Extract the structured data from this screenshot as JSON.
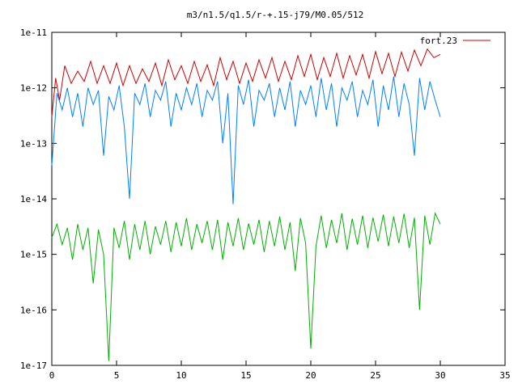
{
  "chart_data": {
    "type": "line",
    "title": "m3/n1.5/q1.5/r-+.15-j79/M0.05/512",
    "xlabel": "",
    "ylabel": "",
    "xlim": [
      0,
      35
    ],
    "ylim": [
      1e-17,
      1e-11
    ],
    "yscale": "log",
    "x_ticks": [
      0,
      5,
      10,
      15,
      20,
      25,
      30,
      35
    ],
    "x_tick_labels": [
      "0",
      "5",
      "10",
      "15",
      "20",
      "25",
      "30",
      "35"
    ],
    "y_ticks": [
      1e-11,
      1e-12,
      1e-13,
      1e-14,
      1e-15,
      1e-16,
      1e-17
    ],
    "y_tick_labels": [
      "1e-11",
      "1e-12",
      "1e-13",
      "1e-14",
      "1e-15",
      "1e-16",
      "1e-17"
    ],
    "grid": false,
    "legend_position": "top-right",
    "series": [
      {
        "name": "fort.23",
        "color": "#cc0000",
        "x": [
          0.0,
          0.3,
          0.6,
          1.0,
          1.5,
          2.0,
          2.5,
          3.0,
          3.5,
          4.0,
          4.5,
          5.0,
          5.5,
          6.0,
          6.5,
          7.0,
          7.5,
          8.0,
          8.5,
          9.0,
          9.5,
          10.0,
          10.5,
          11.0,
          11.5,
          12.0,
          12.5,
          13.0,
          13.5,
          14.0,
          14.5,
          15.0,
          15.5,
          16.0,
          16.5,
          17.0,
          17.5,
          18.0,
          18.5,
          19.0,
          19.5,
          20.0,
          20.5,
          21.0,
          21.5,
          22.0,
          22.5,
          23.0,
          23.5,
          24.0,
          24.5,
          25.0,
          25.5,
          26.0,
          26.5,
          27.0,
          27.5,
          28.0,
          28.5,
          29.0,
          29.5,
          30.0
        ],
        "y": [
          3e-13,
          1.5e-12,
          6e-13,
          2.5e-12,
          1.2e-12,
          2e-12,
          1.3e-12,
          3e-12,
          1.2e-12,
          2.5e-12,
          1.2e-12,
          2.8e-12,
          1.1e-12,
          2.5e-12,
          1.2e-12,
          2.2e-12,
          1.3e-12,
          2.8e-12,
          1.1e-12,
          3.2e-12,
          1.4e-12,
          2.5e-12,
          1.2e-12,
          3e-12,
          1.3e-12,
          2.6e-12,
          1.1e-12,
          3.5e-12,
          1.4e-12,
          3e-12,
          1.2e-12,
          2.8e-12,
          1.3e-12,
          3.2e-12,
          1.5e-12,
          3.5e-12,
          1.3e-12,
          3e-12,
          1.4e-12,
          3.8e-12,
          1.6e-12,
          4e-12,
          1.4e-12,
          3.5e-12,
          1.6e-12,
          4.2e-12,
          1.5e-12,
          3.8e-12,
          1.7e-12,
          4e-12,
          1.5e-12,
          4.5e-12,
          1.8e-12,
          4.2e-12,
          1.6e-12,
          4.4e-12,
          2e-12,
          4.8e-12,
          2.5e-12,
          5e-12,
          3.5e-12,
          4e-12
        ]
      },
      {
        "color": "#0080ff",
        "x": [
          0.0,
          0.4,
          0.8,
          1.2,
          1.6,
          2.0,
          2.4,
          2.8,
          3.2,
          3.6,
          4.0,
          4.4,
          4.8,
          5.2,
          5.6,
          6.0,
          6.4,
          6.8,
          7.2,
          7.6,
          8.0,
          8.4,
          8.8,
          9.2,
          9.6,
          10.0,
          10.4,
          10.8,
          11.2,
          11.6,
          12.0,
          12.4,
          12.8,
          13.2,
          13.6,
          14.0,
          14.4,
          14.8,
          15.2,
          15.6,
          16.0,
          16.4,
          16.8,
          17.2,
          17.6,
          18.0,
          18.4,
          18.8,
          19.2,
          19.6,
          20.0,
          20.4,
          20.8,
          21.2,
          21.6,
          22.0,
          22.4,
          22.8,
          23.2,
          23.6,
          24.0,
          24.4,
          24.8,
          25.2,
          25.6,
          26.0,
          26.4,
          26.8,
          27.2,
          27.6,
          28.0,
          28.4,
          28.8,
          29.2,
          29.6,
          30.0
        ],
        "y": [
          4e-14,
          8e-13,
          4e-13,
          1e-12,
          3e-13,
          8e-13,
          2e-13,
          1e-12,
          5e-13,
          9e-13,
          6e-14,
          7e-13,
          4e-13,
          1.1e-12,
          2e-13,
          1e-14,
          8e-13,
          5e-13,
          1.2e-12,
          3e-13,
          9e-13,
          6e-13,
          1.3e-12,
          2e-13,
          8e-13,
          4e-13,
          1e-12,
          5e-13,
          1.2e-12,
          3e-13,
          9e-13,
          6e-13,
          1.3e-12,
          1e-13,
          8e-13,
          8e-15,
          1.1e-12,
          5e-13,
          1.4e-12,
          2e-13,
          9e-13,
          6e-13,
          1.2e-12,
          3e-13,
          1e-12,
          4e-13,
          1.3e-12,
          2e-13,
          9e-13,
          5e-13,
          1.1e-12,
          3e-13,
          1.5e-12,
          4e-13,
          1.2e-12,
          2e-13,
          1e-12,
          6e-13,
          1.3e-12,
          3e-13,
          9e-13,
          5e-13,
          1.4e-12,
          2e-13,
          1.1e-12,
          4e-13,
          1.6e-12,
          3e-13,
          1.2e-12,
          5e-13,
          6e-14,
          1.5e-12,
          4e-13,
          1.3e-12,
          6e-13,
          3e-13
        ]
      },
      {
        "color": "#00b000",
        "x": [
          0.0,
          0.4,
          0.8,
          1.2,
          1.6,
          2.0,
          2.4,
          2.8,
          3.2,
          3.6,
          4.0,
          4.4,
          4.8,
          5.2,
          5.6,
          6.0,
          6.4,
          6.8,
          7.2,
          7.6,
          8.0,
          8.4,
          8.8,
          9.2,
          9.6,
          10.0,
          10.4,
          10.8,
          11.2,
          11.6,
          12.0,
          12.4,
          12.8,
          13.2,
          13.6,
          14.0,
          14.4,
          14.8,
          15.2,
          15.6,
          16.0,
          16.4,
          16.8,
          17.2,
          17.6,
          18.0,
          18.4,
          18.8,
          19.2,
          19.6,
          20.0,
          20.4,
          20.8,
          21.2,
          21.6,
          22.0,
          22.4,
          22.8,
          23.2,
          23.6,
          24.0,
          24.4,
          24.8,
          25.2,
          25.6,
          26.0,
          26.4,
          26.8,
          27.2,
          27.6,
          28.0,
          28.4,
          28.8,
          29.2,
          29.6,
          30.0
        ],
        "y": [
          2e-15,
          3.5e-15,
          1.5e-15,
          3e-15,
          8e-16,
          3.5e-15,
          1.2e-15,
          3e-15,
          3e-16,
          2.8e-15,
          1e-15,
          1.2e-17,
          3e-15,
          1.3e-15,
          4e-15,
          8e-16,
          3.5e-15,
          1.2e-15,
          4e-15,
          1e-15,
          3.2e-15,
          1.5e-15,
          4e-15,
          1.1e-15,
          3.8e-15,
          1.4e-15,
          4.5e-15,
          1.2e-15,
          3.5e-15,
          1.6e-15,
          4e-15,
          1.2e-15,
          4.2e-15,
          8e-16,
          3.8e-15,
          1.4e-15,
          4.5e-15,
          1.2e-15,
          3.6e-15,
          1.5e-15,
          4.2e-15,
          1.1e-15,
          4e-15,
          1.4e-15,
          4.8e-15,
          1.2e-15,
          3.8e-15,
          5e-16,
          4.5e-15,
          1.6e-15,
          2e-17,
          1.4e-15,
          5e-15,
          1.3e-15,
          4.2e-15,
          1.6e-15,
          5.5e-15,
          1.2e-15,
          4.4e-15,
          1.5e-15,
          5e-15,
          1.3e-15,
          4.6e-15,
          1.7e-15,
          5.2e-15,
          1.4e-15,
          4.8e-15,
          1.6e-15,
          5.4e-15,
          1.3e-15,
          4.6e-15,
          1e-16,
          5e-15,
          1.5e-15,
          5.5e-15,
          3.5e-15
        ]
      }
    ]
  }
}
